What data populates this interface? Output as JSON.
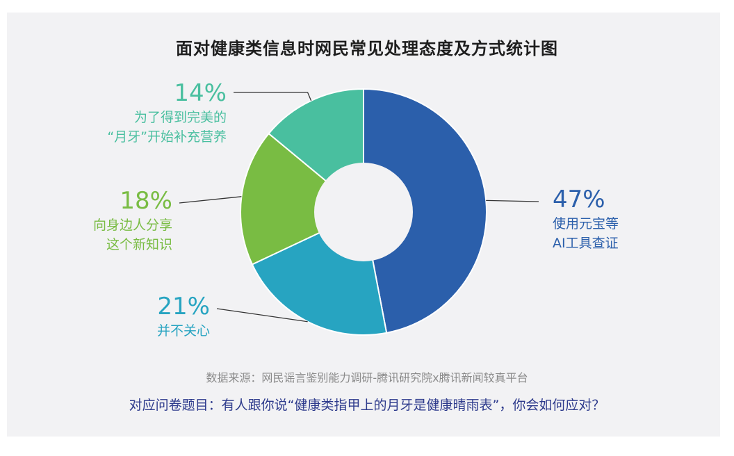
{
  "chart_data": {
    "type": "pie",
    "style": "donut",
    "title": "面对健康类信息时网民常见处理态度及方式统计图",
    "slices": [
      {
        "value": 47,
        "pct_label": "47%",
        "label_lines": [
          "使用元宝等",
          "AI工具查证"
        ],
        "color": "#2b5fab"
      },
      {
        "value": 21,
        "pct_label": "21%",
        "label_lines": [
          "并不关心"
        ],
        "color": "#27a4c1"
      },
      {
        "value": 18,
        "pct_label": "18%",
        "label_lines": [
          "向身边人分享",
          "这个新知识"
        ],
        "color": "#79bc43"
      },
      {
        "value": 14,
        "pct_label": "14%",
        "label_lines": [
          "为了得到完美的",
          "“月牙”开始补充营养"
        ],
        "color": "#49bf9f"
      }
    ]
  },
  "source": "数据来源：网民谣言鉴别能力调研-腾讯研究院x腾讯新闻较真平台",
  "question": "对应问卷题目：有人跟你说“健康类指甲上的月牙是健康晴雨表”，你会如何应对？"
}
